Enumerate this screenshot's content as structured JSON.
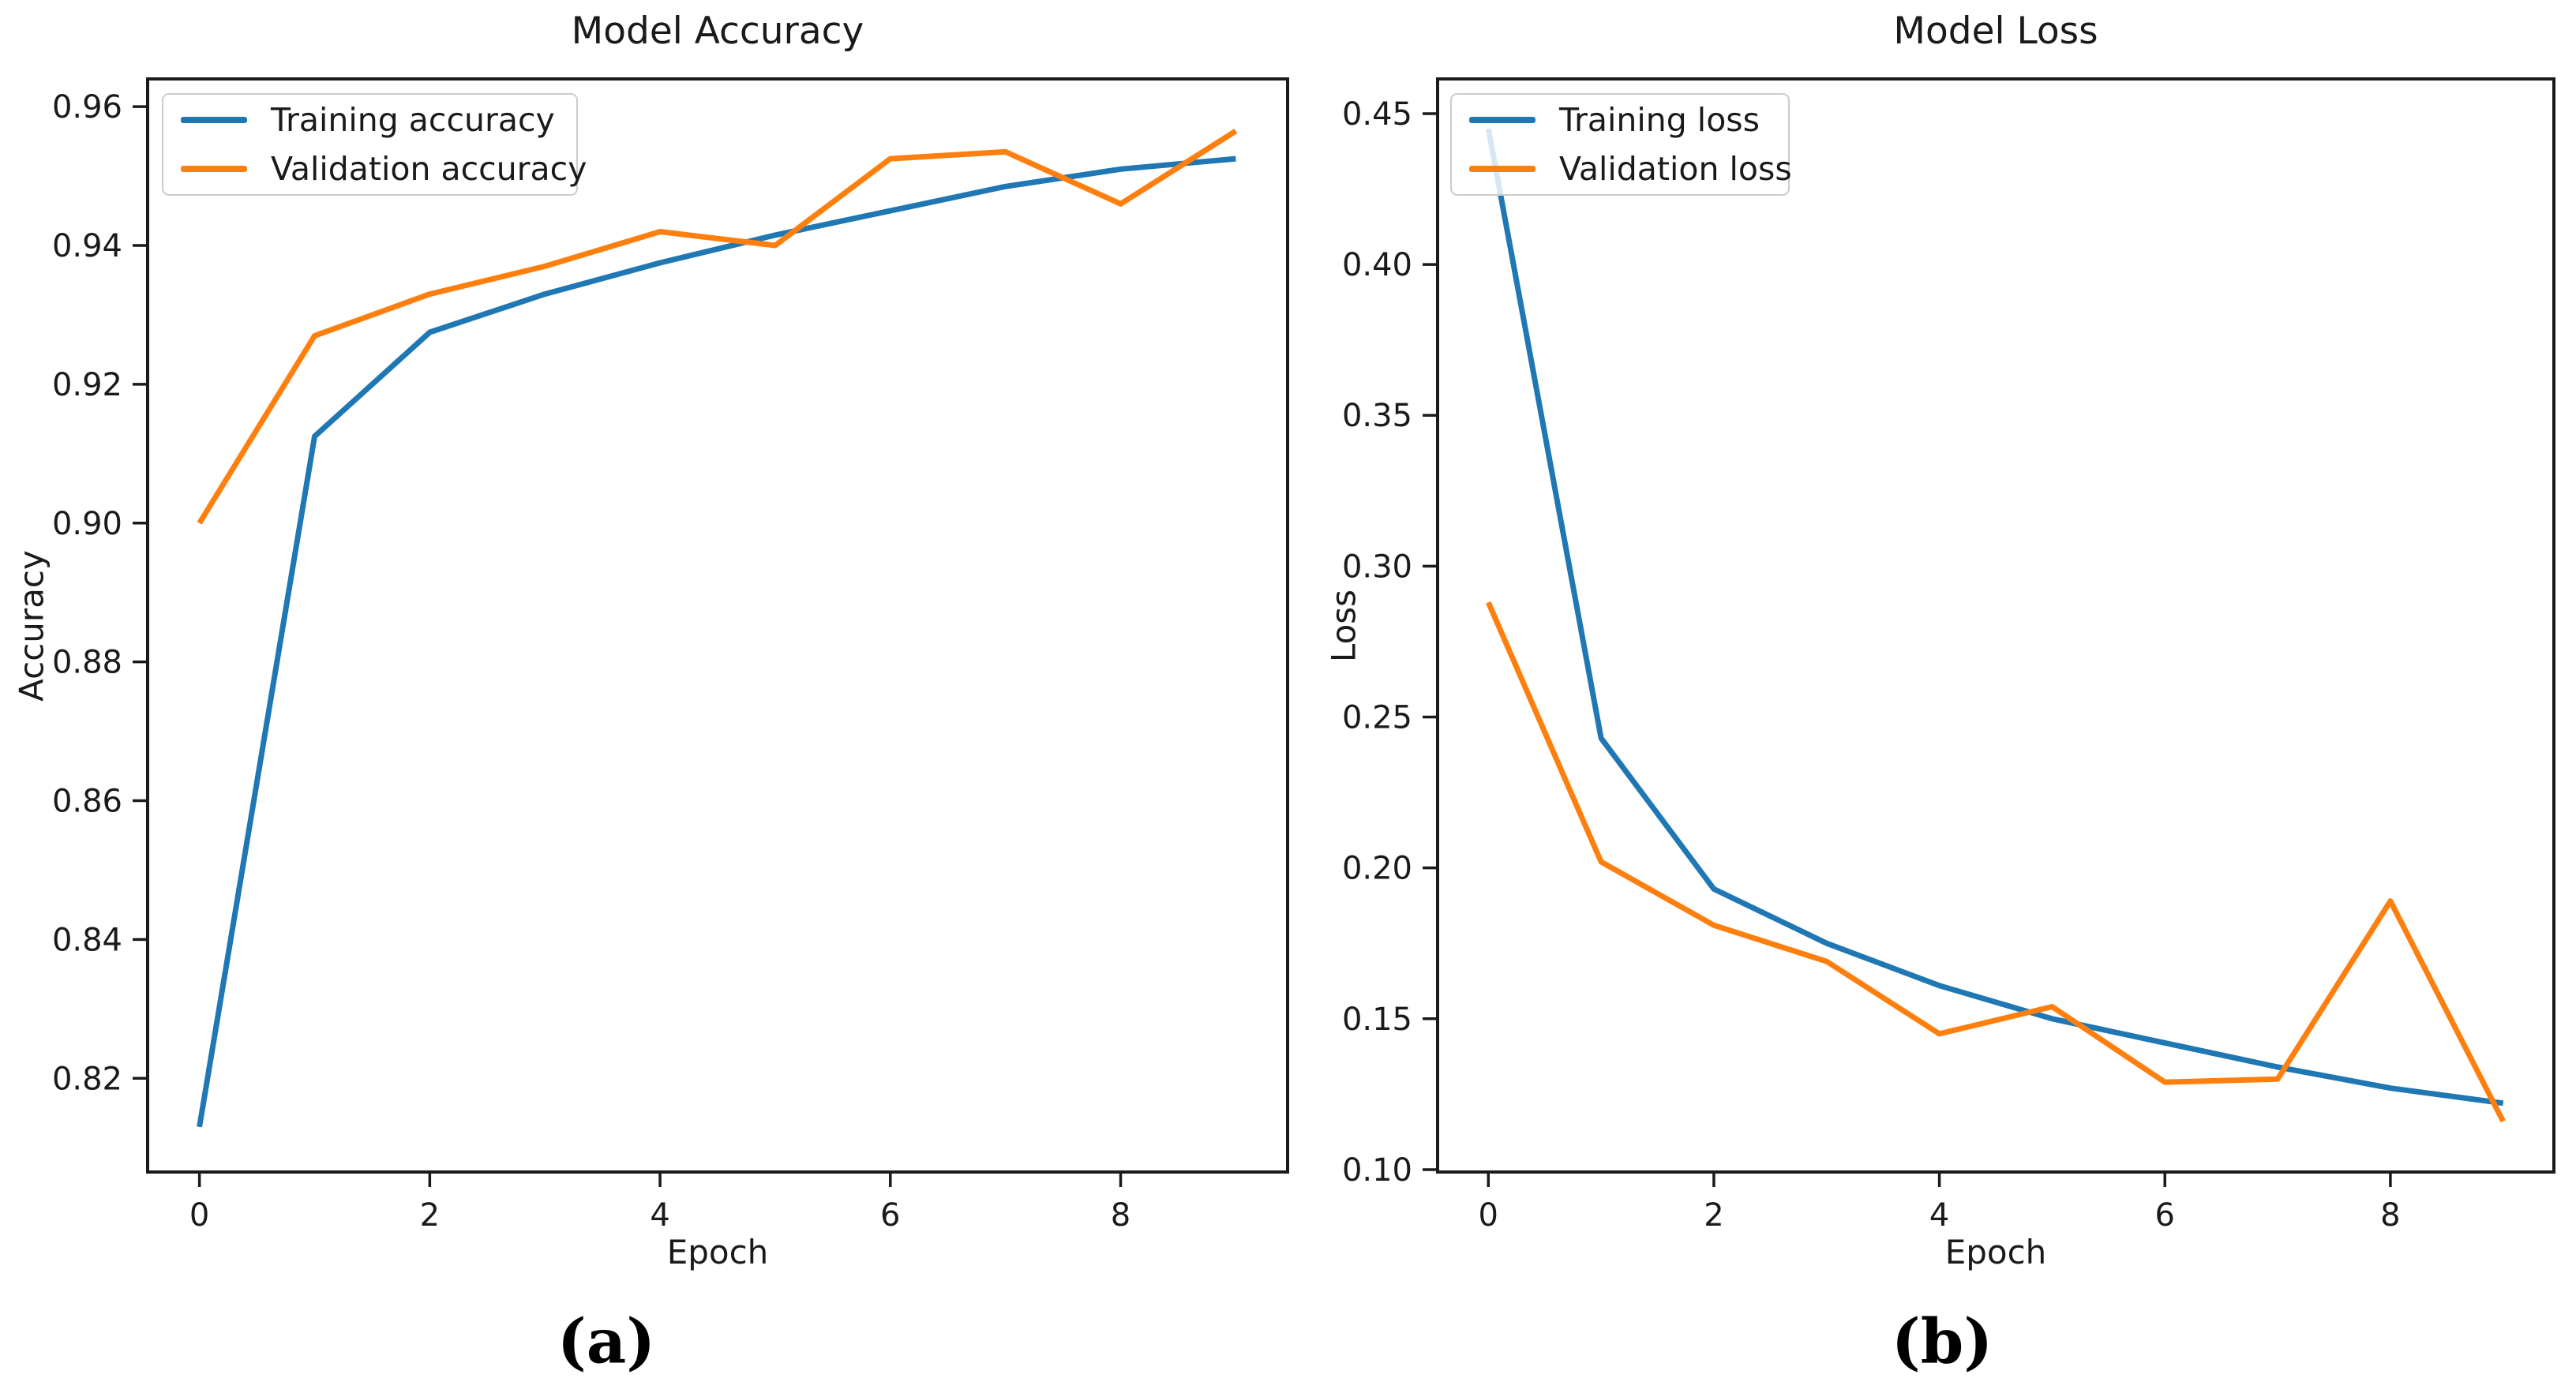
{
  "captions": {
    "a": "(a)",
    "b": "(b)"
  },
  "chart_data": [
    {
      "type": "line",
      "title": "Model Accuracy",
      "xlabel": "Epoch",
      "ylabel": "Accuracy",
      "legend_position": "upper left",
      "grid": false,
      "x": [
        0,
        1,
        2,
        3,
        4,
        5,
        6,
        7,
        8,
        9
      ],
      "xlim": [
        -0.45,
        9.45
      ],
      "ylim": [
        0.8065,
        0.964
      ],
      "xticks": [
        {
          "v": 0,
          "label": "0"
        },
        {
          "v": 2,
          "label": "2"
        },
        {
          "v": 4,
          "label": "4"
        },
        {
          "v": 6,
          "label": "6"
        },
        {
          "v": 8,
          "label": "8"
        }
      ],
      "yticks": [
        {
          "v": 0.96,
          "label": "0.96"
        },
        {
          "v": 0.94,
          "label": "0.94"
        },
        {
          "v": 0.92,
          "label": "0.92"
        },
        {
          "v": 0.9,
          "label": "0.90"
        },
        {
          "v": 0.88,
          "label": "0.88"
        },
        {
          "v": 0.86,
          "label": "0.86"
        },
        {
          "v": 0.84,
          "label": "0.84"
        },
        {
          "v": 0.82,
          "label": "0.82"
        }
      ],
      "series": [
        {
          "name": "Training accuracy",
          "color": "#1f77b4",
          "values": [
            0.813,
            0.9125,
            0.9275,
            0.933,
            0.9375,
            0.9415,
            0.945,
            0.9485,
            0.951,
            0.9525
          ]
        },
        {
          "name": "Validation accuracy",
          "color": "#ff7f0e",
          "values": [
            0.9,
            0.927,
            0.933,
            0.937,
            0.942,
            0.94,
            0.9525,
            0.9535,
            0.946,
            0.9565
          ]
        }
      ]
    },
    {
      "type": "line",
      "title": "Model Loss",
      "xlabel": "Epoch",
      "ylabel": "Loss",
      "legend_position": "upper left",
      "grid": false,
      "x": [
        0,
        1,
        2,
        3,
        4,
        5,
        6,
        7,
        8,
        9
      ],
      "xlim": [
        -0.45,
        9.45
      ],
      "ylim": [
        0.0992,
        0.4615
      ],
      "xticks": [
        {
          "v": 0,
          "label": "0"
        },
        {
          "v": 2,
          "label": "2"
        },
        {
          "v": 4,
          "label": "4"
        },
        {
          "v": 6,
          "label": "6"
        },
        {
          "v": 8,
          "label": "8"
        }
      ],
      "yticks": [
        {
          "v": 0.45,
          "label": "0.45"
        },
        {
          "v": 0.4,
          "label": "0.40"
        },
        {
          "v": 0.35,
          "label": "0.35"
        },
        {
          "v": 0.3,
          "label": "0.30"
        },
        {
          "v": 0.25,
          "label": "0.25"
        },
        {
          "v": 0.2,
          "label": "0.20"
        },
        {
          "v": 0.15,
          "label": "0.15"
        },
        {
          "v": 0.1,
          "label": "0.10"
        }
      ],
      "series": [
        {
          "name": "Training loss",
          "color": "#1f77b4",
          "values": [
            0.445,
            0.243,
            0.193,
            0.175,
            0.161,
            0.15,
            0.142,
            0.134,
            0.127,
            0.122
          ]
        },
        {
          "name": "Validation loss",
          "color": "#ff7f0e",
          "values": [
            0.288,
            0.202,
            0.181,
            0.169,
            0.145,
            0.154,
            0.129,
            0.13,
            0.189,
            0.116
          ]
        }
      ]
    }
  ]
}
